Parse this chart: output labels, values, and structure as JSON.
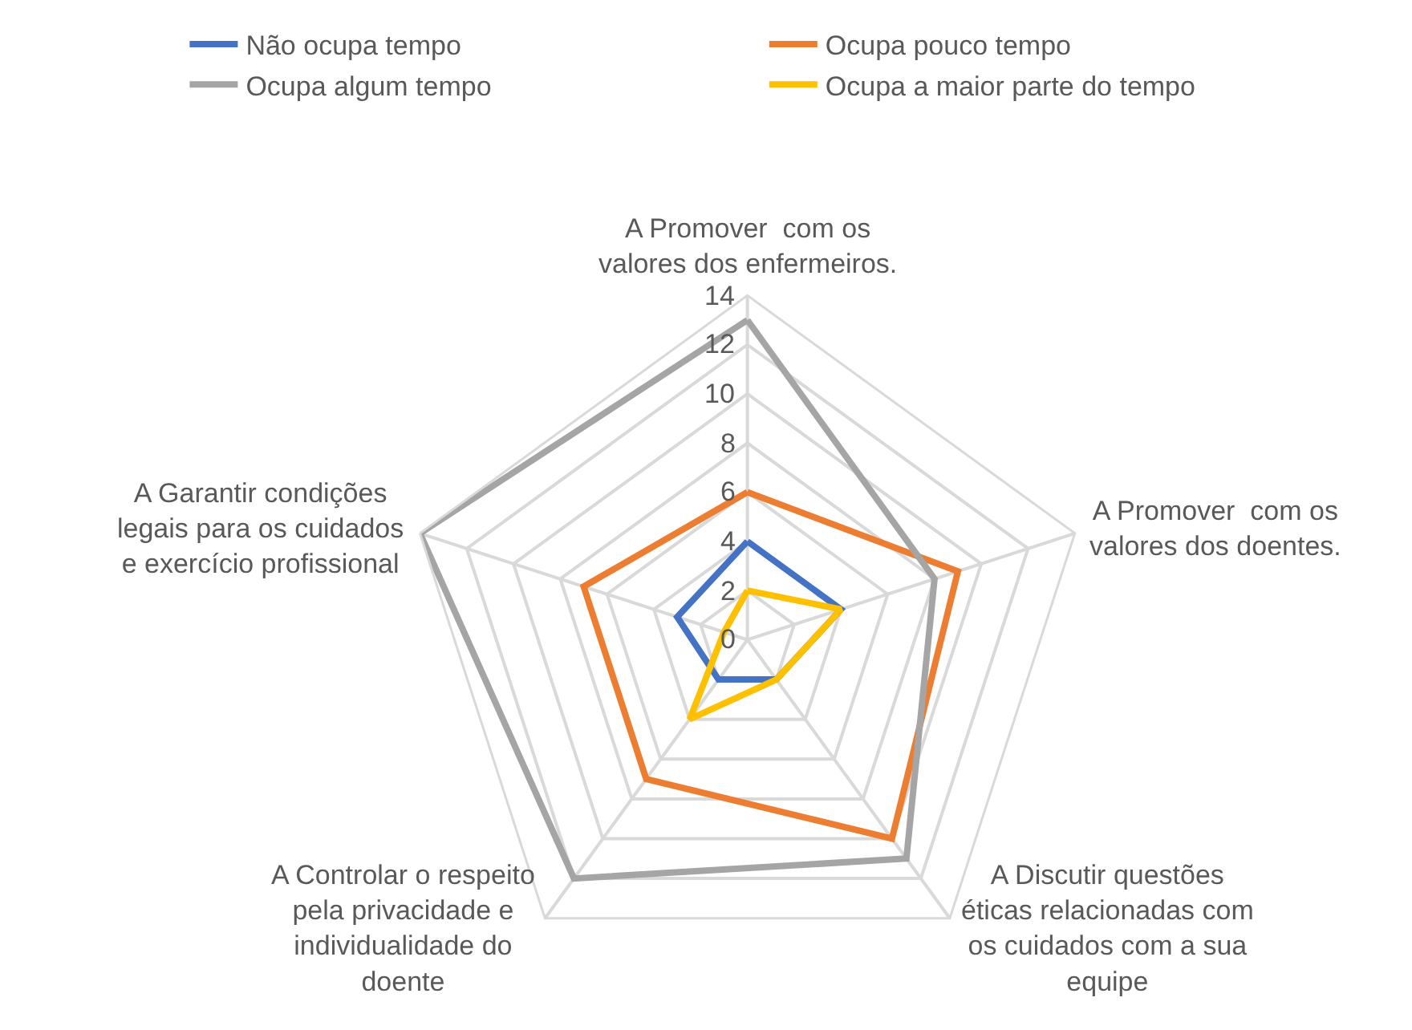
{
  "chart_data": {
    "type": "radar",
    "categories": [
      "A Promover  com os valores dos enfermeiros.",
      "A Promover  com os valores dos doentes.",
      "A Discutir questões éticas relacionadas com os cuidados com a sua equipe",
      "A Controlar o respeito pela privacidade e individualidade do doente",
      "A Garantir condições legais para os cuidados e exercício profissional"
    ],
    "series": [
      {
        "name": "Não ocupa tempo",
        "color": "#4472c4",
        "values": [
          4,
          4,
          2,
          2,
          3
        ]
      },
      {
        "name": "Ocupa pouco tempo",
        "color": "#ed7d31",
        "values": [
          6,
          9,
          10,
          7,
          7
        ]
      },
      {
        "name": "Ocupa algum tempo",
        "color": "#a5a5a5",
        "values": [
          13,
          8,
          11,
          12,
          14
        ]
      },
      {
        "name": "Ocupa a maior parte do tempo",
        "color": "#ffc000",
        "values": [
          2,
          4,
          2,
          4,
          1
        ]
      }
    ],
    "ylim": [
      0,
      14
    ],
    "yticks": [
      0,
      2,
      4,
      6,
      8,
      10,
      12,
      14
    ],
    "grid": true,
    "legend": "top",
    "marker": "none",
    "line_style": "solid"
  }
}
